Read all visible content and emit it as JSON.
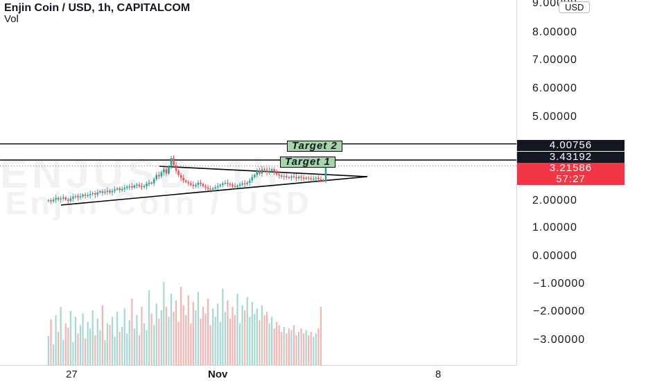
{
  "header": {
    "title": "Enjin Coin / USD, 1h, CAPITALCOM",
    "volume_label": "Vol"
  },
  "watermark": {
    "line1": "ENJUSD, 1h",
    "line2": "Enjin Coin / USD"
  },
  "axis": {
    "currency_button": "USD",
    "top_tick_partial": "9.00000",
    "ticks": [
      "8.00000",
      "7.00000",
      "6.00000",
      "5.00000",
      "2.00000",
      "1.00000",
      "0.00000",
      "−1.00000",
      "−2.00000",
      "−3.00000"
    ]
  },
  "price_labels": {
    "target2_price": "4.00756",
    "target1_price": "3.43192",
    "last_price": "3.21586",
    "countdown": "57:27"
  },
  "annotations": {
    "target1": "Target 1",
    "target2": "Target 2"
  },
  "x_axis": {
    "labels": [
      "27",
      "Nov",
      "8"
    ]
  },
  "colors": {
    "up": "#26a69a",
    "down": "#ef5350",
    "vol_up": "#a5d8d0",
    "vol_down": "#f7b3b1",
    "target_fill": "#a5d6a7",
    "last_price_bg": "#f23645",
    "line": "#000000"
  },
  "chart_data": {
    "type": "candlestick",
    "symbol": "Enjin Coin / USD",
    "interval": "1h",
    "exchange": "CAPITALCOM",
    "y_range": [
      -3.5,
      9.0
    ],
    "x_ticks": [
      "27",
      "Nov",
      "8"
    ],
    "last_price": 3.21586,
    "horizontal_levels": [
      {
        "label": "Target 2",
        "value": 4.00756
      },
      {
        "label": "Target 1",
        "value": 3.43192
      }
    ],
    "triangle": {
      "upper_start": 3.3,
      "upper_end": 2.88,
      "lower_start": 1.88,
      "lower_end": 2.88
    },
    "price_path": [
      2.0,
      1.96,
      2.02,
      2.08,
      2.03,
      2.06,
      2.1,
      2.02,
      1.98,
      2.06,
      2.12,
      2.15,
      2.1,
      2.14,
      2.2,
      2.16,
      2.18,
      2.22,
      2.25,
      2.2,
      2.28,
      2.32,
      2.26,
      2.3,
      2.34,
      2.28,
      2.33,
      2.38,
      2.42,
      2.36,
      2.4,
      2.44,
      2.48,
      2.5,
      2.45,
      2.52,
      2.55,
      2.5,
      2.48,
      2.5,
      2.58,
      2.62,
      2.6,
      2.75,
      2.9,
      2.85,
      3.0,
      3.1,
      2.95,
      3.2,
      3.5,
      3.25,
      3.05,
      2.9,
      2.8,
      2.7,
      2.65,
      2.6,
      2.55,
      2.5,
      2.55,
      2.62,
      2.58,
      2.5,
      2.45,
      2.4,
      2.38,
      2.42,
      2.46,
      2.5,
      2.55,
      2.6,
      2.62,
      2.58,
      2.55,
      2.5,
      2.48,
      2.52,
      2.56,
      2.6,
      2.58,
      2.62,
      2.7,
      2.82,
      2.9,
      3.05,
      2.95,
      3.1,
      3.08,
      3.0,
      3.05,
      3.1,
      3.0,
      2.92,
      2.88,
      2.84,
      2.86,
      2.82,
      2.8,
      2.85,
      2.82,
      2.78,
      2.84,
      2.8,
      2.76,
      2.8,
      2.78,
      2.74,
      2.76,
      2.8,
      2.75,
      2.72,
      2.7,
      3.21586
    ],
    "volume": [
      35,
      55,
      25,
      60,
      40,
      70,
      30,
      50,
      45,
      65,
      28,
      58,
      38,
      48,
      62,
      32,
      52,
      44,
      66,
      36,
      56,
      42,
      72,
      30,
      50,
      48,
      58,
      34,
      64,
      40,
      46,
      68,
      38,
      54,
      80,
      44,
      60,
      36,
      70,
      50,
      42,
      90,
      62,
      48,
      74,
      56,
      66,
      100,
      70,
      58,
      86,
      64,
      78,
      52,
      94,
      72,
      60,
      84,
      50,
      76,
      66,
      88,
      56,
      70,
      62,
      80,
      48,
      68,
      58,
      74,
      52,
      92,
      64,
      78,
      56,
      70,
      60,
      86,
      50,
      72,
      66,
      82,
      58,
      76,
      62,
      68,
      54,
      72,
      60,
      64,
      50,
      58,
      44,
      52,
      48,
      40,
      46,
      38,
      44,
      42,
      48,
      36,
      40,
      44,
      38,
      42,
      36,
      40,
      34,
      38,
      44,
      70
    ]
  }
}
